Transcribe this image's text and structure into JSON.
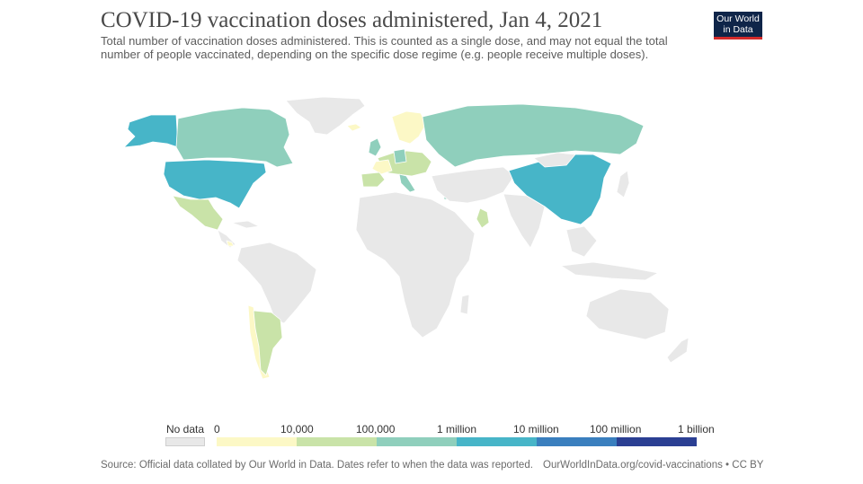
{
  "header": {
    "title": "COVID-19 vaccination doses administered, Jan 4, 2021",
    "subtitle": "Total number of vaccination doses administered. This is counted as a single dose, and may not equal the total number of people vaccinated, depending on the specific dose regime (e.g. people receive multiple doses).",
    "logo_line1": "Our World",
    "logo_line2": "in Data"
  },
  "colors": {
    "no_data": "#e8e8e8",
    "bin_0_10k": "#fcf8c6",
    "bin_10k_100k": "#c9e3a8",
    "bin_100k_1m": "#8fcfbc",
    "bin_1m_10m": "#47b5c8",
    "bin_10m_100m": "#3a7fbe",
    "bin_100m_1b": "#2b3f93",
    "border": "#ffffff",
    "logo_bg": "#0f2549",
    "logo_bar": "#d42b2b"
  },
  "legend": {
    "no_data_label": "No data",
    "tick_labels": [
      "0",
      "10,000",
      "100,000",
      "1 million",
      "10 million",
      "100 million",
      "1 billion"
    ],
    "bins": [
      {
        "from": "0",
        "to": "10,000",
        "color": "#fcf8c6"
      },
      {
        "from": "10,000",
        "to": "100,000",
        "color": "#c9e3a8"
      },
      {
        "from": "100,000",
        "to": "1 million",
        "color": "#8fcfbc"
      },
      {
        "from": "1 million",
        "to": "10 million",
        "color": "#47b5c8"
      },
      {
        "from": "10 million",
        "to": "100 million",
        "color": "#3a7fbe"
      },
      {
        "from": "100 million",
        "to": "1 billion",
        "color": "#2b3f93"
      }
    ]
  },
  "footer": {
    "source": "Source: Official data collated by Our World in Data. Dates refer to when the data was reported.",
    "link": "OurWorldInData.org/covid-vaccinations • CC BY"
  }
}
